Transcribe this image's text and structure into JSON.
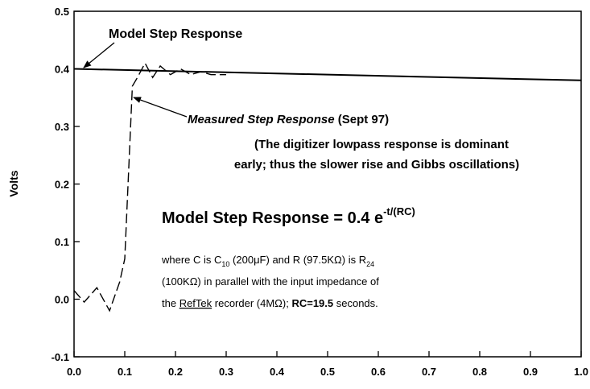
{
  "chart_data": {
    "type": "line",
    "ylabel": "Volts",
    "xlim": [
      0,
      1
    ],
    "ylim": [
      -0.1,
      0.5
    ],
    "xticks": [
      {
        "value": 0,
        "label": "0.0"
      },
      0.1,
      0.2,
      0.3,
      0.4,
      0.5,
      0.6,
      0.7,
      0.8,
      0.9,
      {
        "value": 1,
        "label": "1.0"
      }
    ],
    "yticks": [
      -0.1,
      {
        "value": 0,
        "label": "0.0"
      },
      0.1,
      0.2,
      0.3,
      0.4,
      0.5
    ],
    "series": [
      {
        "color": "#000000",
        "dash": false,
        "x": [
          0,
          0.25,
          0.5,
          0.75,
          1
        ],
        "values": [
          0.4,
          0.395,
          0.39,
          0.385,
          0.38
        ]
      },
      {
        "color": "#000000",
        "dash": true,
        "x": [
          0,
          0.02,
          0.045,
          0.07,
          0.09,
          0.1,
          0.115,
          0.125,
          0.14,
          0.155,
          0.17,
          0.19,
          0.21,
          0.23,
          0.25,
          0.27,
          0.3
        ],
        "values": [
          0.015,
          -0.005,
          0.02,
          -0.02,
          0.03,
          0.07,
          0.37,
          0.385,
          0.41,
          0.385,
          0.405,
          0.39,
          0.4,
          0.39,
          0.395,
          0.39,
          0.39
        ]
      }
    ],
    "annotations": {
      "model_label": "Model Step Response",
      "measured_label": [
        "Measured Step Response",
        " (Sept 97)"
      ],
      "note": [
        "(The digitizer lowpass response is dominant",
        "early; thus the slower rise and Gibbs oscillations)"
      ],
      "equation": [
        "Model Step Response = 0.4 e",
        "-t/(RC)"
      ],
      "where": [
        [
          "where C is C",
          "10",
          " (200μF) and R (97.5KΩ) is  R",
          "24"
        ],
        [
          "(100KΩ) in parallel with the input impedance of"
        ],
        [
          "the ",
          "RefTek",
          " recorder (4MΩ);  ",
          "RC=19.5",
          " seconds."
        ]
      ]
    }
  }
}
